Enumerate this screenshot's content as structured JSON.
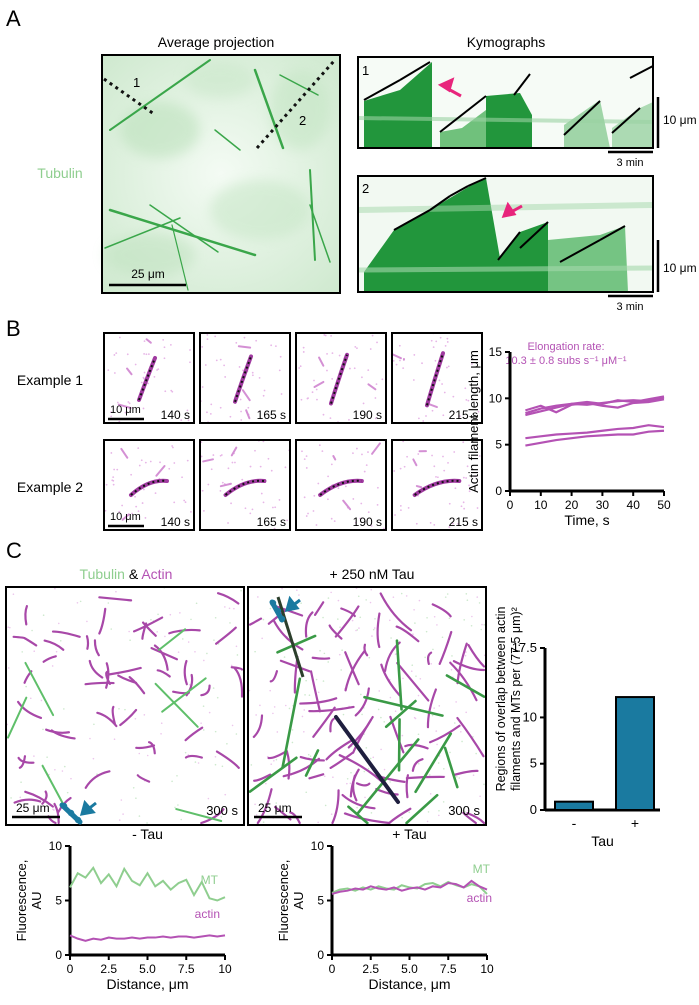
{
  "panel_a": {
    "letter": "A",
    "left_title": "Average projection",
    "right_title": "Kymographs",
    "side_label": "Tubulin",
    "line_labels": [
      "1",
      "2"
    ],
    "scalebar_label": "25 μm",
    "kymo_labels": [
      "1",
      "2"
    ],
    "kymo_vscale": "10 μm",
    "kymo_hscale": "3 min"
  },
  "panel_b": {
    "letter": "B",
    "rows": [
      "Example 1",
      "Example 2"
    ],
    "times": [
      "140 s",
      "165 s",
      "190 s",
      "215 s"
    ],
    "scalebar_label": "10 μm",
    "chart_title_line1": "Elongation rate:",
    "chart_title_line2": "10.3 ± 0.8 subs s⁻¹ μM⁻¹"
  },
  "panel_c": {
    "letter": "C",
    "legend_tubulin": "Tubulin",
    "legend_amp": " & ",
    "legend_actin": "Actin",
    "right_title": "+ 250 nM Tau",
    "scalebar_label": "25 μm",
    "time_label": "300 s",
    "profile_left_title": "- Tau",
    "profile_right_title": "+ Tau",
    "mt_label": "MT",
    "actin_label": "actin"
  },
  "colors": {
    "tubulin": "#8fce8f",
    "actin": "#b452b4",
    "bar": "#1a7aa0",
    "arrow_pink": "#e8257c",
    "arrow_teal": "#1a7aa0"
  },
  "chart_data": [
    {
      "id": "B-elongation",
      "type": "line",
      "xlabel": "Time, s",
      "ylabel": "Actin filament length, μm",
      "xlim": [
        0,
        50
      ],
      "ylim": [
        0,
        15
      ],
      "xticks": [
        0,
        10,
        20,
        30,
        40,
        50
      ],
      "yticks": [
        0,
        5,
        10,
        15
      ],
      "x": [
        5,
        10,
        15,
        20,
        25,
        30,
        35,
        40,
        45,
        50
      ],
      "series": [
        {
          "values": [
            8.4,
            8.9,
            9.2,
            9.4,
            9.3,
            9.5,
            9.7,
            9.8,
            9.7,
            10.1
          ]
        },
        {
          "values": [
            8.7,
            9.2,
            8.5,
            9.3,
            9.5,
            9.2,
            9.0,
            9.5,
            9.6,
            9.9
          ]
        },
        {
          "values": [
            8.2,
            8.6,
            9.0,
            9.4,
            9.6,
            9.4,
            9.8,
            9.6,
            9.9,
            10.2
          ]
        },
        {
          "values": [
            5.7,
            5.9,
            6.1,
            6.2,
            6.3,
            6.5,
            6.7,
            6.8,
            7.1,
            6.9
          ]
        },
        {
          "values": [
            4.9,
            5.2,
            5.5,
            5.7,
            5.9,
            6.0,
            6.1,
            6.1,
            6.4,
            6.5
          ]
        }
      ]
    },
    {
      "id": "C-overlap",
      "type": "bar",
      "xlabel": "Tau",
      "ylabel": "Regions of overlap between actin filaments and MTs per (77.5 μm)²",
      "categories": [
        "-",
        "+"
      ],
      "values": [
        0.9,
        12.2
      ],
      "ylim": [
        0,
        17.5
      ],
      "yticks": [
        0,
        5,
        10,
        17.5
      ]
    },
    {
      "id": "C-profile-minus-tau",
      "type": "line",
      "xlabel": "Distance, μm",
      "ylabel": "Fluorescence, AU",
      "xlim": [
        0,
        10
      ],
      "ylim": [
        0,
        10
      ],
      "xticks": [
        0,
        2.5,
        5.0,
        7.5,
        10
      ],
      "yticks": [
        0,
        5,
        10
      ],
      "x": [
        0,
        0.5,
        1,
        1.5,
        2,
        2.5,
        3,
        3.5,
        4,
        4.5,
        5,
        5.5,
        6,
        6.5,
        7,
        7.5,
        8,
        8.5,
        9,
        9.5,
        10
      ],
      "series": [
        {
          "name": "MT",
          "values": [
            6.2,
            7.5,
            7.1,
            8.0,
            6.6,
            7.4,
            6.3,
            7.9,
            6.8,
            6.4,
            7.5,
            6.3,
            6.8,
            6.0,
            6.6,
            6.9,
            5.5,
            6.7,
            5.2,
            5.0,
            5.3
          ]
        },
        {
          "name": "actin",
          "values": [
            1.8,
            1.5,
            1.3,
            1.5,
            1.4,
            1.6,
            1.5,
            1.5,
            1.6,
            1.5,
            1.6,
            1.6,
            1.7,
            1.6,
            1.7,
            1.7,
            1.6,
            1.7,
            1.8,
            1.7,
            1.8
          ]
        }
      ]
    },
    {
      "id": "C-profile-plus-tau",
      "type": "line",
      "xlabel": "Distance, μm",
      "ylabel": "Fluorescence, AU",
      "xlim": [
        0,
        10
      ],
      "ylim": [
        0,
        10
      ],
      "xticks": [
        0,
        2.5,
        5.0,
        7.5,
        10
      ],
      "yticks": [
        0,
        5,
        10
      ],
      "x": [
        0,
        0.5,
        1,
        1.5,
        2,
        2.5,
        3,
        3.5,
        4,
        4.5,
        5,
        5.5,
        6,
        6.5,
        7,
        7.5,
        8,
        8.5,
        9,
        9.5,
        10
      ],
      "series": [
        {
          "name": "MT",
          "values": [
            5.7,
            6.0,
            6.1,
            5.9,
            6.2,
            6.0,
            6.3,
            6.1,
            6.0,
            6.4,
            6.2,
            6.1,
            6.5,
            6.6,
            6.3,
            6.7,
            6.4,
            6.2,
            6.5,
            6.3,
            5.6
          ]
        },
        {
          "name": "actin",
          "values": [
            5.6,
            5.8,
            5.9,
            6.1,
            6.0,
            6.3,
            6.1,
            6.0,
            6.2,
            5.9,
            6.1,
            6.2,
            6.0,
            6.3,
            6.2,
            6.6,
            6.5,
            6.2,
            6.8,
            6.3,
            6.0
          ]
        }
      ]
    }
  ]
}
